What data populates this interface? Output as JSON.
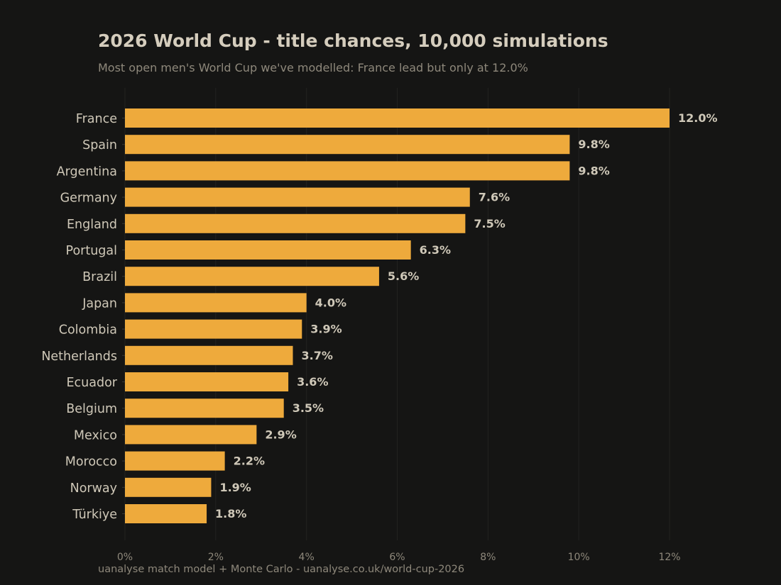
{
  "chart_data": {
    "type": "bar",
    "orientation": "horizontal",
    "title": "2026 World Cup - title chances, 10,000 simulations",
    "subtitle": "Most open men's World Cup we've modelled: France lead but only at 12.0%",
    "footer": "uanalyse match model + Monte Carlo  -  uanalyse.co.uk/world-cup-2026",
    "categories": [
      "France",
      "Spain",
      "Argentina",
      "Germany",
      "England",
      "Portugal",
      "Brazil",
      "Japan",
      "Colombia",
      "Netherlands",
      "Ecuador",
      "Belgium",
      "Mexico",
      "Morocco",
      "Norway",
      "Türkiye"
    ],
    "values": [
      12.0,
      9.8,
      9.8,
      7.6,
      7.5,
      6.3,
      5.6,
      4.0,
      3.9,
      3.7,
      3.6,
      3.5,
      2.9,
      2.2,
      1.9,
      1.8
    ],
    "value_labels": [
      "12.0%",
      "9.8%",
      "9.8%",
      "7.6%",
      "7.5%",
      "6.3%",
      "5.6%",
      "4.0%",
      "3.9%",
      "3.7%",
      "3.6%",
      "3.5%",
      "2.9%",
      "2.2%",
      "1.9%",
      "1.8%"
    ],
    "xticks": [
      0,
      2,
      4,
      6,
      8,
      10,
      12
    ],
    "xtick_labels": [
      "0%",
      "2%",
      "4%",
      "6%",
      "8%",
      "10%",
      "12%"
    ],
    "xlim": [
      0,
      12
    ],
    "xlabel": "",
    "ylabel": "",
    "grid": "vertical",
    "legend": "none",
    "colors": {
      "background": "#151514",
      "bar": "#eeaa3c",
      "title": "#d5cdbd",
      "subtitle": "#8e887b",
      "label": "#cfc8b8",
      "grid": "#222220"
    }
  }
}
